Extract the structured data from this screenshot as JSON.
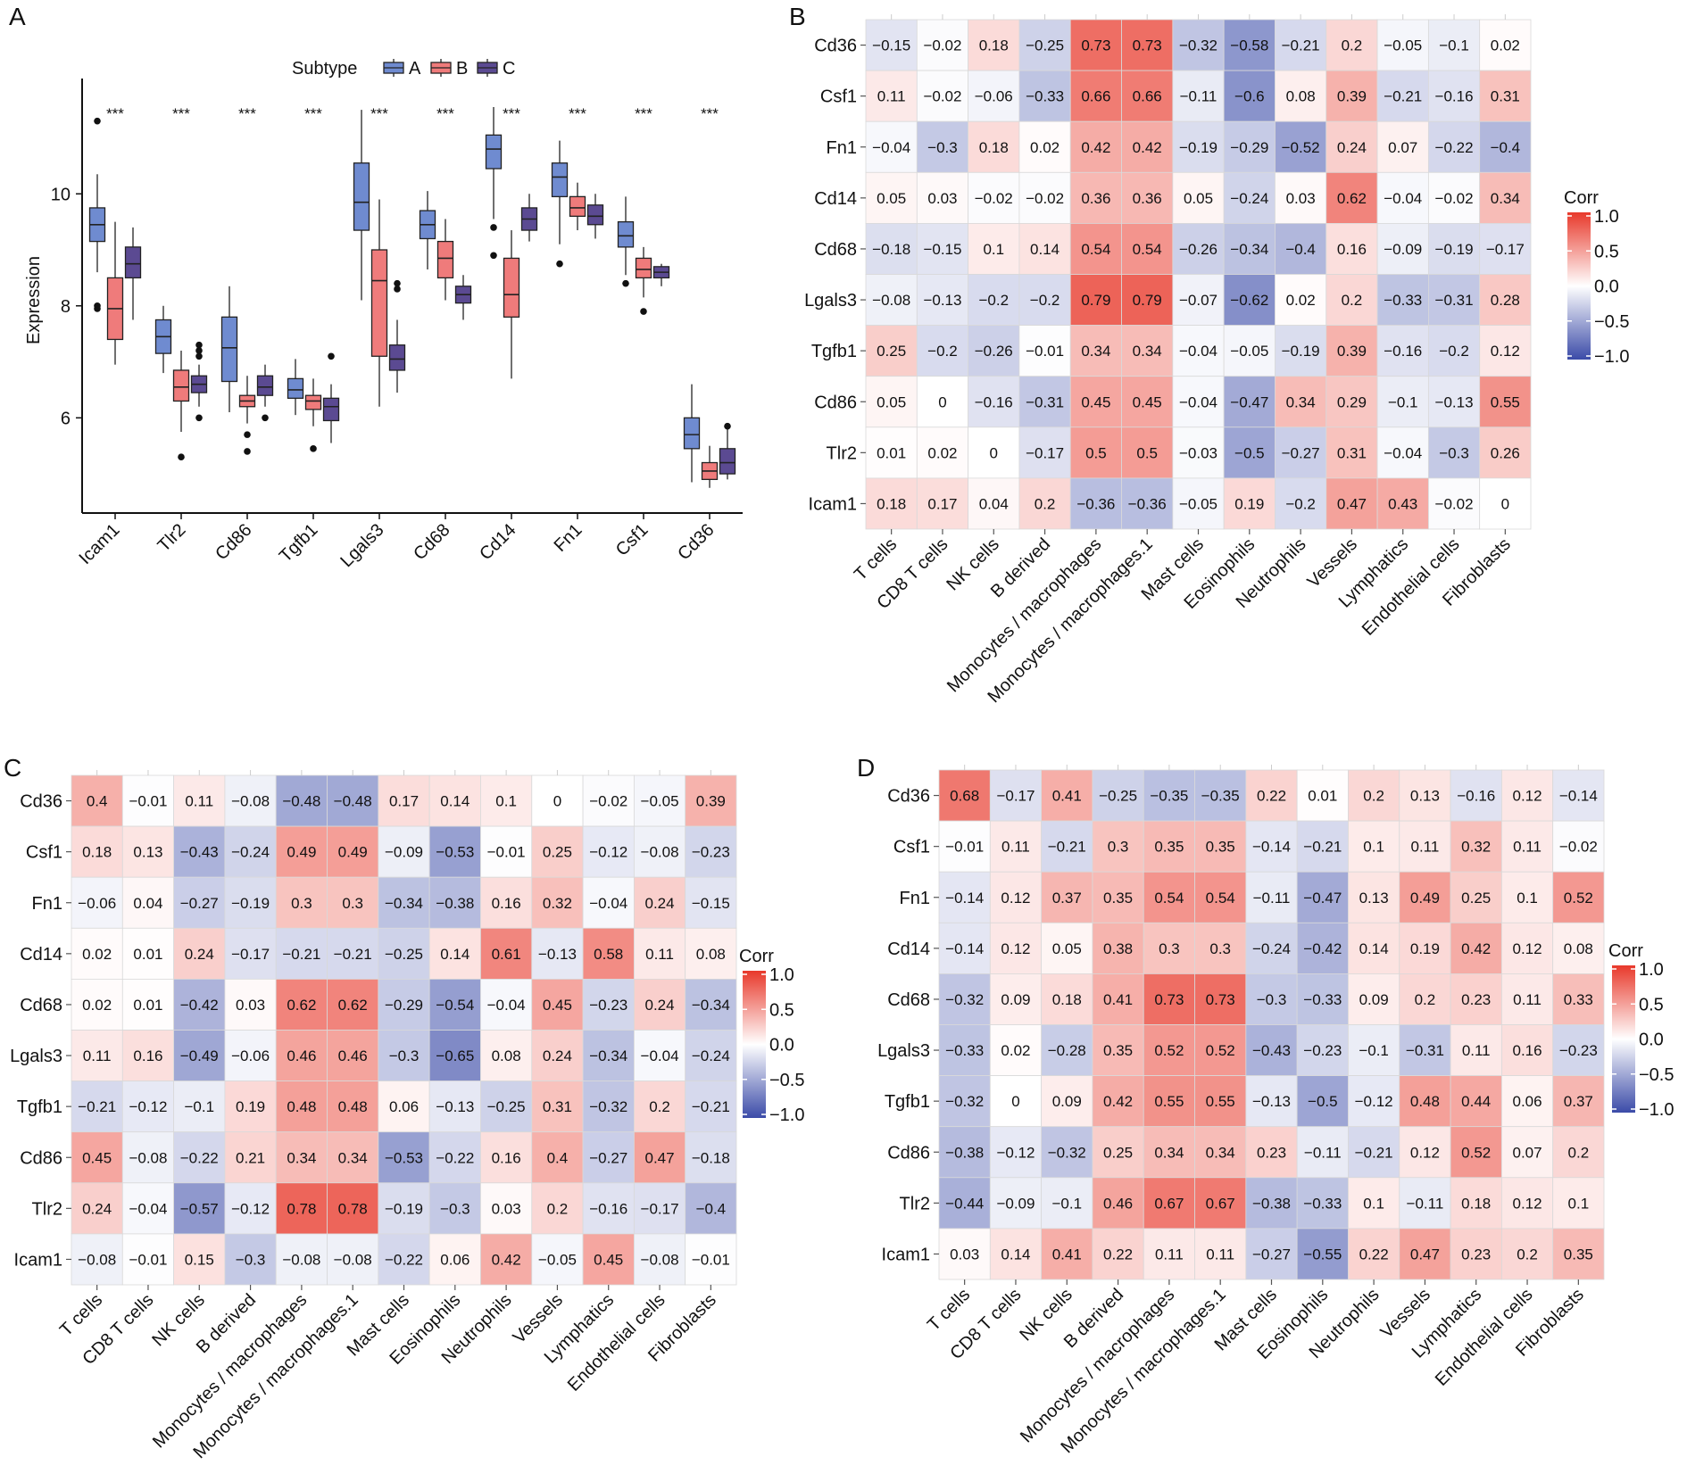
{
  "colors": {
    "subtype_A": "#6f8bd0",
    "subtype_B": "#ef7b7b",
    "subtype_C": "#5b4a92",
    "corr_neg": "#3b4ba8",
    "corr_zero": "#ffffff",
    "corr_pos": "#e8392b"
  },
  "chart_data": [
    {
      "panel": "A",
      "type": "box",
      "ylabel": "Expression",
      "ylim": [
        4.3,
        11.9
      ],
      "yticks": [
        6,
        8,
        10
      ],
      "legend": {
        "title": "Subtype",
        "entries": [
          "A",
          "B",
          "C"
        ],
        "placement": "top-center"
      },
      "categories": [
        "Icam1",
        "Tlr2",
        "Cd86",
        "Tgfb1",
        "Lgals3",
        "Cd68",
        "Cd14",
        "Fn1",
        "Csf1",
        "Cd36"
      ],
      "significance": [
        "***",
        "***",
        "***",
        "***",
        "***",
        "***",
        "***",
        "***",
        "***",
        "***"
      ],
      "series": [
        {
          "name": "A",
          "boxes": [
            {
              "min": 8.6,
              "q1": 9.15,
              "median": 9.45,
              "q3": 9.75,
              "max": 10.35,
              "outliers": [
                11.3,
                8.0,
                7.95
              ]
            },
            {
              "min": 6.8,
              "q1": 7.15,
              "median": 7.45,
              "q3": 7.75,
              "max": 8.0,
              "outliers": []
            },
            {
              "min": 6.1,
              "q1": 6.65,
              "median": 7.25,
              "q3": 7.8,
              "max": 8.35,
              "outliers": []
            },
            {
              "min": 6.05,
              "q1": 6.35,
              "median": 6.5,
              "q3": 6.7,
              "max": 7.05,
              "outliers": []
            },
            {
              "min": 8.1,
              "q1": 9.35,
              "median": 9.85,
              "q3": 10.55,
              "max": 11.5,
              "outliers": []
            },
            {
              "min": 8.65,
              "q1": 9.2,
              "median": 9.45,
              "q3": 9.7,
              "max": 10.05,
              "outliers": []
            },
            {
              "min": 9.55,
              "q1": 10.45,
              "median": 10.8,
              "q3": 11.05,
              "max": 11.55,
              "outliers": [
                9.4,
                8.9
              ]
            },
            {
              "min": 9.1,
              "q1": 9.95,
              "median": 10.3,
              "q3": 10.55,
              "max": 10.95,
              "outliers": [
                8.75
              ]
            },
            {
              "min": 8.55,
              "q1": 9.05,
              "median": 9.25,
              "q3": 9.5,
              "max": 9.95,
              "outliers": [
                8.4
              ]
            },
            {
              "min": 4.85,
              "q1": 5.45,
              "median": 5.7,
              "q3": 6.0,
              "max": 6.6,
              "outliers": []
            }
          ]
        },
        {
          "name": "B",
          "boxes": [
            {
              "min": 6.95,
              "q1": 7.4,
              "median": 7.95,
              "q3": 8.5,
              "max": 9.5,
              "outliers": []
            },
            {
              "min": 5.75,
              "q1": 6.3,
              "median": 6.55,
              "q3": 6.85,
              "max": 7.2,
              "outliers": [
                5.3
              ]
            },
            {
              "min": 5.9,
              "q1": 6.2,
              "median": 6.3,
              "q3": 6.4,
              "max": 6.75,
              "outliers": [
                5.7,
                5.4
              ]
            },
            {
              "min": 5.85,
              "q1": 6.15,
              "median": 6.3,
              "q3": 6.4,
              "max": 6.7,
              "outliers": [
                5.45
              ]
            },
            {
              "min": 6.2,
              "q1": 7.1,
              "median": 8.45,
              "q3": 9.0,
              "max": 9.9,
              "outliers": []
            },
            {
              "min": 8.1,
              "q1": 8.5,
              "median": 8.85,
              "q3": 9.15,
              "max": 9.55,
              "outliers": []
            },
            {
              "min": 6.7,
              "q1": 7.8,
              "median": 8.2,
              "q3": 8.85,
              "max": 9.35,
              "outliers": []
            },
            {
              "min": 9.35,
              "q1": 9.6,
              "median": 9.75,
              "q3": 9.95,
              "max": 10.2,
              "outliers": []
            },
            {
              "min": 8.15,
              "q1": 8.5,
              "median": 8.65,
              "q3": 8.85,
              "max": 9.05,
              "outliers": [
                7.9
              ]
            },
            {
              "min": 4.75,
              "q1": 4.9,
              "median": 5.05,
              "q3": 5.2,
              "max": 5.5,
              "outliers": []
            }
          ]
        },
        {
          "name": "C",
          "boxes": [
            {
              "min": 7.75,
              "q1": 8.5,
              "median": 8.75,
              "q3": 9.05,
              "max": 9.4,
              "outliers": []
            },
            {
              "min": 6.2,
              "q1": 6.45,
              "median": 6.6,
              "q3": 6.75,
              "max": 6.95,
              "outliers": [
                7.3,
                7.2,
                7.1,
                6.0
              ]
            },
            {
              "min": 6.2,
              "q1": 6.4,
              "median": 6.55,
              "q3": 6.75,
              "max": 6.95,
              "outliers": [
                6.0
              ]
            },
            {
              "min": 5.55,
              "q1": 5.95,
              "median": 6.2,
              "q3": 6.35,
              "max": 6.6,
              "outliers": [
                7.1
              ]
            },
            {
              "min": 6.45,
              "q1": 6.85,
              "median": 7.05,
              "q3": 7.3,
              "max": 7.75,
              "outliers": [
                8.4,
                8.3
              ]
            },
            {
              "min": 7.75,
              "q1": 8.05,
              "median": 8.2,
              "q3": 8.35,
              "max": 8.55,
              "outliers": []
            },
            {
              "min": 9.15,
              "q1": 9.35,
              "median": 9.55,
              "q3": 9.75,
              "max": 10.0,
              "outliers": []
            },
            {
              "min": 9.2,
              "q1": 9.45,
              "median": 9.6,
              "q3": 9.8,
              "max": 10.0,
              "outliers": []
            },
            {
              "min": 8.35,
              "q1": 8.5,
              "median": 8.6,
              "q3": 8.7,
              "max": 8.75,
              "outliers": []
            },
            {
              "min": 4.9,
              "q1": 5.0,
              "median": 5.2,
              "q3": 5.45,
              "max": 5.85,
              "outliers": [
                5.85
              ]
            }
          ]
        }
      ]
    },
    {
      "panel": "B",
      "type": "heatmap",
      "legend": {
        "title": "Corr",
        "ticks": [
          "1.0",
          "0.5",
          "0.0",
          "−0.5",
          "−1.0"
        ],
        "range": [
          -1,
          1
        ]
      },
      "rows": [
        "Cd36",
        "Csf1",
        "Fn1",
        "Cd14",
        "Cd68",
        "Lgals3",
        "Tgfb1",
        "Cd86",
        "Tlr2",
        "Icam1"
      ],
      "columns": [
        "T cells",
        "CD8 T cells",
        "NK cells",
        "B derived",
        "Monocytes / macrophages",
        "Monocytes / macrophages.1",
        "Mast cells",
        "Eosinophils",
        "Neutrophils",
        "Vessels",
        "Lymphatics",
        "Endothelial cells",
        "Fibroblasts"
      ],
      "values": [
        [
          -0.15,
          -0.02,
          0.18,
          -0.25,
          0.73,
          0.73,
          -0.32,
          -0.58,
          -0.21,
          0.2,
          -0.05,
          -0.1,
          0.02
        ],
        [
          0.11,
          -0.02,
          -0.06,
          -0.33,
          0.66,
          0.66,
          -0.11,
          -0.6,
          0.08,
          0.39,
          -0.21,
          -0.16,
          0.31
        ],
        [
          -0.04,
          -0.3,
          0.18,
          0.02,
          0.42,
          0.42,
          -0.19,
          -0.29,
          -0.52,
          0.24,
          0.07,
          -0.22,
          -0.4
        ],
        [
          0.05,
          0.03,
          -0.02,
          -0.02,
          0.36,
          0.36,
          0.05,
          -0.24,
          0.03,
          0.62,
          -0.04,
          -0.02,
          0.34
        ],
        [
          -0.18,
          -0.15,
          0.1,
          0.14,
          0.54,
          0.54,
          -0.26,
          -0.34,
          -0.4,
          0.16,
          -0.09,
          -0.19,
          -0.17
        ],
        [
          -0.08,
          -0.13,
          -0.2,
          -0.2,
          0.79,
          0.79,
          -0.07,
          -0.62,
          0.02,
          0.2,
          -0.33,
          -0.31,
          0.28
        ],
        [
          0.25,
          -0.2,
          -0.26,
          -0.01,
          0.34,
          0.34,
          -0.04,
          -0.05,
          -0.19,
          0.39,
          -0.16,
          -0.2,
          0.12
        ],
        [
          0.05,
          0,
          -0.16,
          -0.31,
          0.45,
          0.45,
          -0.04,
          -0.47,
          0.34,
          0.29,
          -0.1,
          -0.13,
          0.55
        ],
        [
          0.01,
          0.02,
          0,
          -0.17,
          0.5,
          0.5,
          -0.03,
          -0.5,
          -0.27,
          0.31,
          -0.04,
          -0.3,
          0.26
        ],
        [
          0.18,
          0.17,
          0.04,
          0.2,
          -0.36,
          -0.36,
          -0.05,
          0.19,
          -0.2,
          0.47,
          0.43,
          -0.02,
          0
        ]
      ]
    },
    {
      "panel": "C",
      "type": "heatmap",
      "legend": {
        "title": "Corr",
        "ticks": [
          "1.0",
          "0.5",
          "0.0",
          "−0.5",
          "−1.0"
        ],
        "range": [
          -1,
          1
        ]
      },
      "rows": [
        "Cd36",
        "Csf1",
        "Fn1",
        "Cd14",
        "Cd68",
        "Lgals3",
        "Tgfb1",
        "Cd86",
        "Tlr2",
        "Icam1"
      ],
      "columns": [
        "T cells",
        "CD8 T cells",
        "NK cells",
        "B derived",
        "Monocytes / macrophages",
        "Monocytes / macrophages.1",
        "Mast cells",
        "Eosinophils",
        "Neutrophils",
        "Vessels",
        "Lymphatics",
        "Endothelial cells",
        "Fibroblasts"
      ],
      "values": [
        [
          0.4,
          -0.01,
          0.11,
          -0.08,
          -0.48,
          -0.48,
          0.17,
          0.14,
          0.1,
          0,
          -0.02,
          -0.05,
          0.39
        ],
        [
          0.18,
          0.13,
          -0.43,
          -0.24,
          0.49,
          0.49,
          -0.09,
          -0.53,
          -0.01,
          0.25,
          -0.12,
          -0.08,
          -0.23
        ],
        [
          -0.06,
          0.04,
          -0.27,
          -0.19,
          0.3,
          0.3,
          -0.34,
          -0.38,
          0.16,
          0.32,
          -0.04,
          0.24,
          -0.15
        ],
        [
          0.02,
          0.01,
          0.24,
          -0.17,
          -0.21,
          -0.21,
          -0.25,
          0.14,
          0.61,
          -0.13,
          0.58,
          0.11,
          0.08
        ],
        [
          0.02,
          0.01,
          -0.42,
          0.03,
          0.62,
          0.62,
          -0.29,
          -0.54,
          -0.04,
          0.45,
          -0.23,
          0.24,
          -0.34
        ],
        [
          0.11,
          0.16,
          -0.49,
          -0.06,
          0.46,
          0.46,
          -0.3,
          -0.65,
          0.08,
          0.24,
          -0.34,
          -0.04,
          -0.24
        ],
        [
          -0.21,
          -0.12,
          -0.1,
          0.19,
          0.48,
          0.48,
          0.06,
          -0.13,
          -0.25,
          0.31,
          -0.32,
          0.2,
          -0.21
        ],
        [
          0.45,
          -0.08,
          -0.22,
          0.21,
          0.34,
          0.34,
          -0.53,
          -0.22,
          0.16,
          0.4,
          -0.27,
          0.47,
          -0.18
        ],
        [
          0.24,
          -0.04,
          -0.57,
          -0.12,
          0.78,
          0.78,
          -0.19,
          -0.3,
          0.03,
          0.2,
          -0.16,
          -0.17,
          -0.4
        ],
        [
          -0.08,
          -0.01,
          0.15,
          -0.3,
          -0.08,
          -0.08,
          -0.22,
          0.06,
          0.42,
          -0.05,
          0.45,
          -0.08,
          -0.01
        ]
      ]
    },
    {
      "panel": "D",
      "type": "heatmap",
      "legend": {
        "title": "Corr",
        "ticks": [
          "1.0",
          "0.5",
          "0.0",
          "−0.5",
          "−1.0"
        ],
        "range": [
          -1,
          1
        ]
      },
      "rows": [
        "Cd36",
        "Csf1",
        "Fn1",
        "Cd14",
        "Cd68",
        "Lgals3",
        "Tgfb1",
        "Cd86",
        "Tlr2",
        "Icam1"
      ],
      "columns": [
        "T cells",
        "CD8 T cells",
        "NK cells",
        "B derived",
        "Monocytes / macrophages",
        "Monocytes / macrophages.1",
        "Mast cells",
        "Eosinophils",
        "Neutrophils",
        "Vessels",
        "Lymphatics",
        "Endothelial cells",
        "Fibroblasts"
      ],
      "values": [
        [
          0.68,
          -0.17,
          0.41,
          -0.25,
          -0.35,
          -0.35,
          0.22,
          0.01,
          0.2,
          0.13,
          -0.16,
          0.12,
          -0.14
        ],
        [
          -0.01,
          0.11,
          -0.21,
          0.3,
          0.35,
          0.35,
          -0.14,
          -0.21,
          0.1,
          0.11,
          0.32,
          0.11,
          -0.02
        ],
        [
          -0.14,
          0.12,
          0.37,
          0.35,
          0.54,
          0.54,
          -0.11,
          -0.47,
          0.13,
          0.49,
          0.25,
          0.1,
          0.52
        ],
        [
          -0.14,
          0.12,
          0.05,
          0.38,
          0.3,
          0.3,
          -0.24,
          -0.42,
          0.14,
          0.19,
          0.42,
          0.12,
          0.08
        ],
        [
          -0.32,
          0.09,
          0.18,
          0.41,
          0.73,
          0.73,
          -0.3,
          -0.33,
          0.09,
          0.2,
          0.23,
          0.11,
          0.33
        ],
        [
          -0.33,
          0.02,
          -0.28,
          0.35,
          0.52,
          0.52,
          -0.43,
          -0.23,
          -0.1,
          -0.31,
          0.11,
          0.16,
          -0.23
        ],
        [
          -0.32,
          0,
          0.09,
          0.42,
          0.55,
          0.55,
          -0.13,
          -0.5,
          -0.12,
          0.48,
          0.44,
          0.06,
          0.37
        ],
        [
          -0.38,
          -0.12,
          -0.32,
          0.25,
          0.34,
          0.34,
          0.23,
          -0.11,
          -0.21,
          0.12,
          0.52,
          0.07,
          0.2
        ],
        [
          -0.44,
          -0.09,
          -0.1,
          0.46,
          0.67,
          0.67,
          -0.38,
          -0.33,
          0.1,
          -0.11,
          0.18,
          0.12,
          0.1
        ],
        [
          0.03,
          0.14,
          0.41,
          0.22,
          0.11,
          0.11,
          -0.27,
          -0.55,
          0.22,
          0.47,
          0.23,
          0.2,
          0.35
        ]
      ]
    }
  ]
}
